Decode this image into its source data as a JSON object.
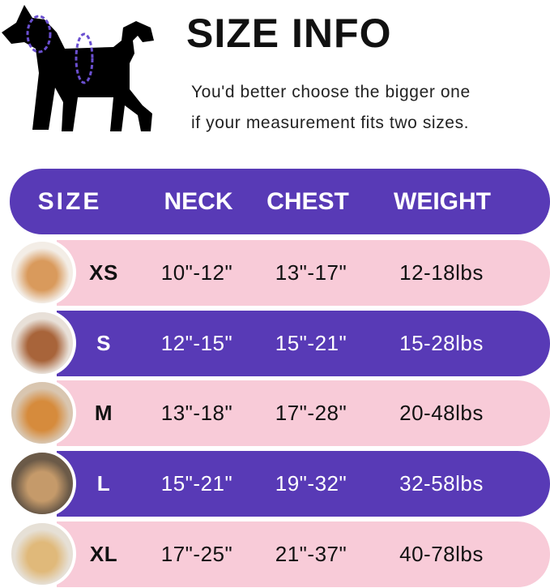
{
  "title": "SIZE INFO",
  "note_lines": [
    "You'd better choose the bigger one",
    "if your measurement fits two sizes."
  ],
  "colors": {
    "purple": "#583ab6",
    "pink": "#f8cbd8"
  },
  "headers": [
    "SIZE",
    "NECK",
    "CHEST",
    "WEIGHT"
  ],
  "rows": [
    {
      "size": "XS",
      "neck": "10\"-12\"",
      "chest": "13\"-17\"",
      "weight": "12-18lbs",
      "style": "pink",
      "photo": "pomeranian-photo"
    },
    {
      "size": "S",
      "neck": "12\"-15\"",
      "chest": "15\"-21\"",
      "weight": "15-28lbs",
      "style": "purple",
      "photo": "poodle-photo"
    },
    {
      "size": "M",
      "neck": "13\"-18\"",
      "chest": "17\"-28\"",
      "weight": "20-48lbs",
      "style": "pink",
      "photo": "shiba-photo"
    },
    {
      "size": "L",
      "neck": "15\"-21\"",
      "chest": "19\"-32\"",
      "weight": "32-58lbs",
      "style": "purple",
      "photo": "french-bulldog-photo"
    },
    {
      "size": "XL",
      "neck": "17\"-25\"",
      "chest": "21\"-37\"",
      "weight": "40-78lbs",
      "style": "pink",
      "photo": "golden-retriever-photo"
    }
  ]
}
